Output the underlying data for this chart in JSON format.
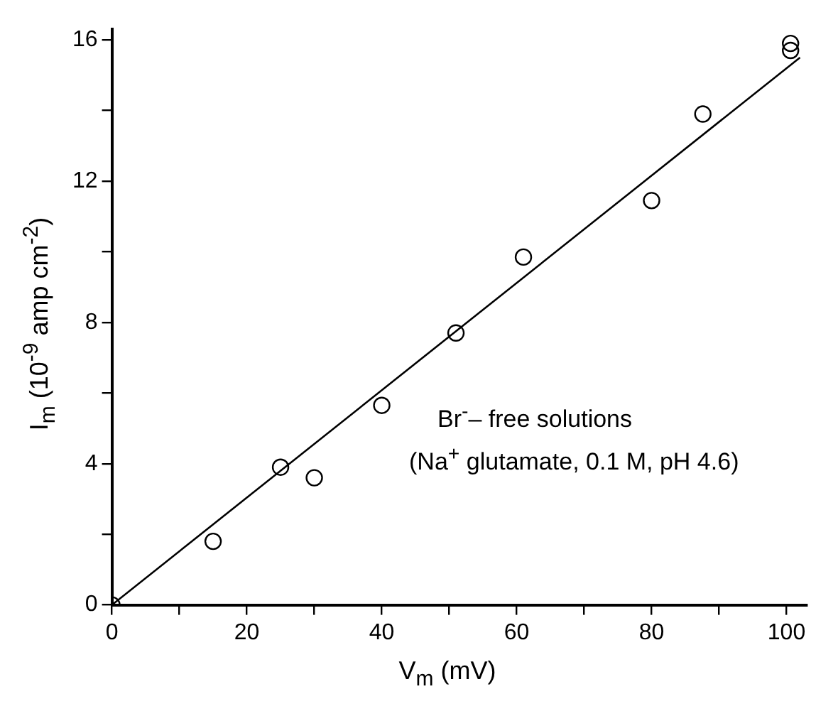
{
  "chart_data": {
    "type": "scatter",
    "xlabel": "V$_{m}$ (mV)",
    "ylabel": "I$_{m}$ (10$^{-9}$ amp cm$^{-2}$)",
    "annotations": [
      "Br$^{-}$– free solutions",
      "(Na$^{+}$ glutamate, 0.1 M, pH 4.6)"
    ],
    "x": [
      0,
      15,
      25,
      30,
      40,
      51,
      61,
      80,
      87.6,
      100.6,
      100.6
    ],
    "series": [
      {
        "type": "scatter",
        "color": "#000000",
        "marker": "circle",
        "values": [
          0,
          1.8,
          3.9,
          3.6,
          5.65,
          7.7,
          9.85,
          11.45,
          13.9,
          15.9,
          15.7
        ]
      },
      {
        "type": "line",
        "color": "#000000",
        "marker": "none",
        "x": [
          0,
          102
        ],
        "values": [
          0,
          15.5
        ]
      }
    ],
    "xlim": [
      0,
      103
    ],
    "ylim": [
      0,
      16.3
    ],
    "xticks": [
      0,
      {
        "value": 10,
        "label": null
      },
      20,
      {
        "value": 30,
        "label": null
      },
      40,
      {
        "value": 50,
        "label": null
      },
      60,
      {
        "value": 70,
        "label": null
      },
      80,
      {
        "value": 90,
        "label": null
      },
      100
    ],
    "yticks": [
      0,
      {
        "value": 2,
        "label": null
      },
      4,
      {
        "value": 6,
        "label": null
      },
      8,
      {
        "value": 10,
        "label": null
      },
      12,
      {
        "value": 14,
        "label": null
      },
      16
    ],
    "grid": false,
    "legend": false
  }
}
